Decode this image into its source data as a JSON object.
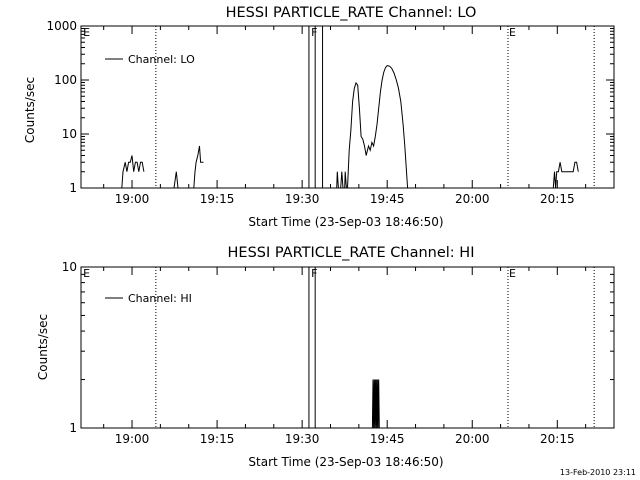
{
  "footer_timestamp": "13-Feb-2010 23:11",
  "chart_data": [
    {
      "type": "line",
      "title": "HESSI PARTICLE_RATE Channel: LO",
      "xlabel": "Start Time (23-Sep-03 18:46:50)",
      "ylabel": "Counts/sec",
      "yscale": "log",
      "ylim": [
        1,
        1000
      ],
      "ytick_values": [
        1,
        10,
        100,
        1000
      ],
      "ytick_labels": [
        "1",
        "10",
        "100",
        "1000"
      ],
      "xlim_minutes": [
        -9,
        85
      ],
      "xtick_values": [
        0,
        15,
        30,
        45,
        60,
        75
      ],
      "xtick_labels": [
        "19:00",
        "19:15",
        "19:30",
        "19:45",
        "20:00",
        "20:15"
      ],
      "legend": {
        "label": "Channel: LO",
        "position": "top-left"
      },
      "flags": [
        {
          "text": "E",
          "x": -8.8
        },
        {
          "text": "F",
          "x": 31.4
        },
        {
          "text": "E",
          "x": 66.3
        }
      ],
      "vlines_dotted": [
        4.2,
        66.3,
        81.5
      ],
      "vlines_solid": [
        31.2,
        32.3,
        33.6
      ],
      "series": [
        {
          "name": "Channel: LO",
          "color": "#000000",
          "segments": [
            [
              [
                -1.8,
                1
              ],
              [
                -1.6,
                2
              ],
              [
                -1.2,
                3
              ],
              [
                -0.9,
                2
              ],
              [
                -0.6,
                3
              ],
              [
                -0.3,
                3
              ],
              [
                0.0,
                4
              ],
              [
                0.3,
                2
              ],
              [
                0.6,
                3
              ],
              [
                0.9,
                3
              ],
              [
                1.2,
                2
              ],
              [
                1.5,
                3
              ],
              [
                1.8,
                3
              ],
              [
                2.1,
                2
              ]
            ],
            [
              [
                7.4,
                1
              ],
              [
                7.8,
                2
              ],
              [
                8.1,
                1
              ]
            ],
            [
              [
                10.9,
                1
              ],
              [
                11.1,
                2
              ],
              [
                11.3,
                3
              ],
              [
                11.6,
                4
              ],
              [
                11.9,
                6
              ],
              [
                12.1,
                3
              ],
              [
                12.4,
                3
              ],
              [
                12.6,
                3
              ]
            ],
            [
              [
                36.1,
                1
              ],
              [
                36.2,
                2
              ],
              [
                36.4,
                1
              ]
            ],
            [
              [
                36.8,
                1
              ],
              [
                37.0,
                2
              ],
              [
                37.2,
                1
              ]
            ],
            [
              [
                37.5,
                1
              ],
              [
                37.6,
                2
              ],
              [
                37.8,
                1
              ]
            ],
            [
              [
                38.0,
                1
              ],
              [
                38.3,
                5
              ],
              [
                38.6,
                12
              ],
              [
                38.9,
                40
              ],
              [
                39.2,
                70
              ],
              [
                39.5,
                88
              ],
              [
                39.8,
                80
              ],
              [
                40.1,
                30
              ],
              [
                40.4,
                9
              ],
              [
                40.7,
                8
              ],
              [
                41.0,
                6
              ],
              [
                41.3,
                4
              ],
              [
                41.7,
                6
              ],
              [
                42.0,
                5
              ],
              [
                42.3,
                7
              ],
              [
                42.6,
                6
              ],
              [
                42.9,
                9
              ],
              [
                43.2,
                15
              ],
              [
                43.5,
                30
              ],
              [
                43.8,
                60
              ],
              [
                44.1,
                100
              ],
              [
                44.4,
                140
              ],
              [
                44.7,
                170
              ],
              [
                45.0,
                185
              ],
              [
                45.4,
                180
              ],
              [
                45.8,
                165
              ],
              [
                46.2,
                135
              ],
              [
                46.6,
                100
              ],
              [
                47.0,
                70
              ],
              [
                47.4,
                40
              ],
              [
                47.8,
                15
              ],
              [
                48.1,
                6
              ],
              [
                48.4,
                2
              ],
              [
                48.6,
                1
              ]
            ],
            [
              [
                74.3,
                1
              ],
              [
                74.5,
                2
              ],
              [
                74.7,
                1
              ],
              [
                74.9,
                2
              ],
              [
                75.2,
                2
              ],
              [
                75.5,
                3
              ],
              [
                75.8,
                2
              ],
              [
                76.1,
                2
              ],
              [
                76.6,
                2
              ],
              [
                77.2,
                2
              ],
              [
                77.8,
                2
              ],
              [
                78.1,
                3
              ],
              [
                78.4,
                3
              ],
              [
                78.7,
                2
              ]
            ]
          ]
        }
      ]
    },
    {
      "type": "line",
      "title": "HESSI PARTICLE_RATE Channel: HI",
      "xlabel": "Start Time (23-Sep-03 18:46:50)",
      "ylabel": "Counts/sec",
      "yscale": "log",
      "ylim": [
        1,
        10
      ],
      "ytick_values": [
        1,
        10
      ],
      "ytick_labels": [
        "1",
        "10"
      ],
      "xlim_minutes": [
        -9,
        85
      ],
      "xtick_values": [
        0,
        15,
        30,
        45,
        60,
        75
      ],
      "xtick_labels": [
        "19:00",
        "19:15",
        "19:30",
        "19:45",
        "20:00",
        "20:15"
      ],
      "legend": {
        "label": "Channel: HI",
        "position": "top-left"
      },
      "flags": [
        {
          "text": "E",
          "x": -8.8
        },
        {
          "text": "F",
          "x": 31.4
        },
        {
          "text": "E",
          "x": 66.3
        }
      ],
      "vlines_dotted": [
        4.2,
        66.3,
        81.5
      ],
      "vlines_solid": [
        31.2,
        32.3
      ],
      "series": [
        {
          "name": "Channel: HI",
          "color": "#000000",
          "segments": [
            [
              [
                42.4,
                1
              ],
              [
                42.5,
                2
              ],
              [
                42.6,
                1
              ],
              [
                42.7,
                2
              ],
              [
                42.8,
                1
              ],
              [
                42.9,
                2
              ],
              [
                43.0,
                1
              ],
              [
                43.1,
                2
              ],
              [
                43.2,
                1
              ],
              [
                43.3,
                2
              ],
              [
                43.4,
                1
              ],
              [
                43.5,
                2
              ],
              [
                43.6,
                1
              ]
            ]
          ]
        }
      ]
    }
  ]
}
